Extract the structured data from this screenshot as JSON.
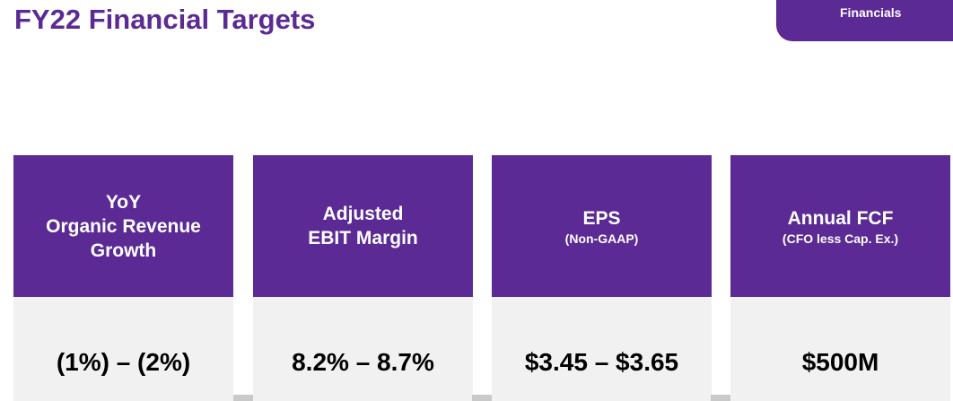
{
  "title": "FY22 Financial Targets",
  "section_tab": "Financials",
  "colors": {
    "brand_purple": "#5b2a94",
    "panel_gray": "#f1f1f1",
    "value_text": "#000000"
  },
  "cards": [
    {
      "heading_lines": [
        "YoY",
        "Organic Revenue",
        "Growth"
      ],
      "subheading": "",
      "value": "(1%) – (2%)"
    },
    {
      "heading_lines": [
        "Adjusted",
        "EBIT Margin"
      ],
      "subheading": "",
      "value": "8.2% – 8.7%"
    },
    {
      "heading_lines": [
        "EPS"
      ],
      "subheading": "(Non-GAAP)",
      "value": "$3.45 – $3.65"
    },
    {
      "heading_lines": [
        "Annual FCF"
      ],
      "subheading": "(CFO less Cap. Ex.)",
      "value": "$500M"
    }
  ]
}
